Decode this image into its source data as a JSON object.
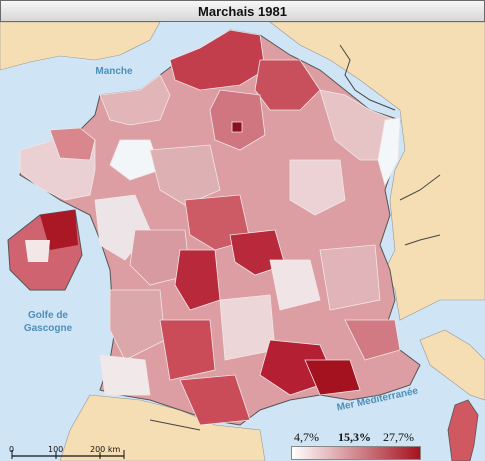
{
  "title": "Marchais 1981",
  "seas": {
    "manche": "Manche",
    "gascogne_line1": "Golfe de",
    "gascogne_line2": "Gascogne",
    "med": "Mer Méditerranée"
  },
  "scale": {
    "labels": [
      "0",
      "100",
      "200 km"
    ]
  },
  "legend": {
    "min": "4,7%",
    "mid": "15,3%",
    "max": "27,7%",
    "color_min": "#ffffff",
    "color_max": "#a5121f"
  },
  "colors": {
    "sea": "#cfe4f4",
    "land": "#f5deb3",
    "border": "#555555"
  }
}
